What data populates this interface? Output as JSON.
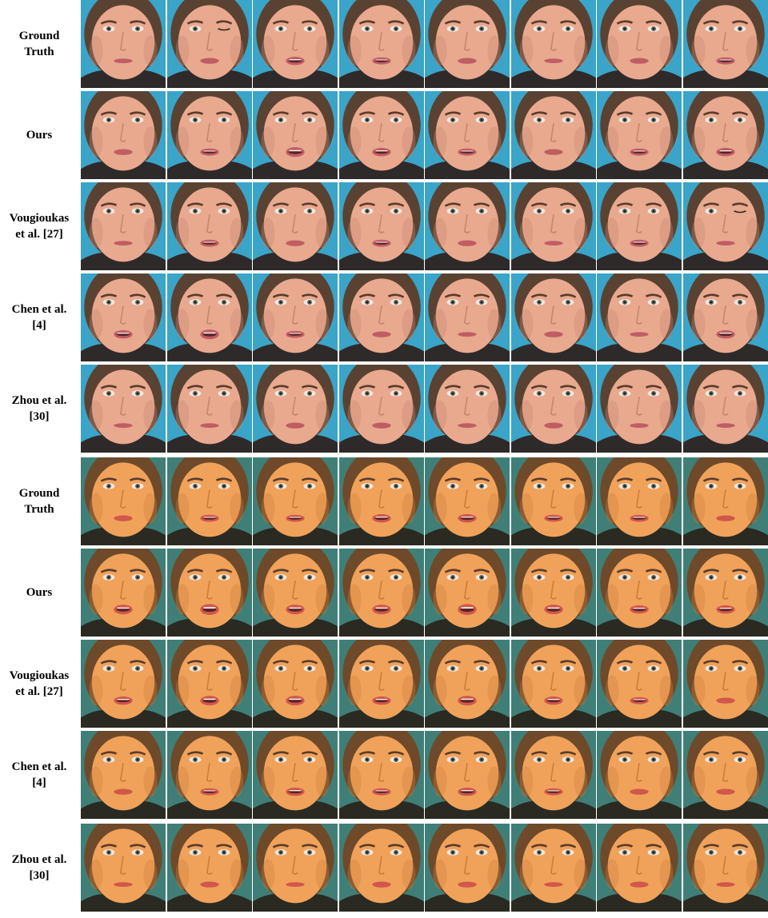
{
  "rows": [
    {
      "label": "Ground\nTruth",
      "subject": "a",
      "frames": 8
    },
    {
      "label": "Ours",
      "subject": "a",
      "frames": 8
    },
    {
      "label": "Vougioukas\net al. [27]",
      "subject": "a",
      "frames": 8
    },
    {
      "label": "Chen et al.\n[4]",
      "subject": "a",
      "frames": 8
    },
    {
      "label": "Zhou et al.\n[30]",
      "subject": "a",
      "frames": 8
    },
    {
      "label": "Ground\nTruth",
      "subject": "b",
      "frames": 8
    },
    {
      "label": "Ours",
      "subject": "b",
      "frames": 8
    },
    {
      "label": "Vougioukas\net al. [27]",
      "subject": "b",
      "frames": 8
    },
    {
      "label": "Chen et al.\n[4]",
      "subject": "b",
      "frames": 8
    },
    {
      "label": "Zhou et al.\n[30]",
      "subject": "b",
      "frames": 8
    }
  ],
  "subjects": {
    "a": {
      "background": "#3aa4c9",
      "skin": "#e8a98f",
      "skin_shadow": "#c98770",
      "hair": "#5a4232",
      "lips": "#c05d63",
      "shirt": "#2f2a2a"
    },
    "b": {
      "background": "#3f7f77",
      "skin": "#f0a25a",
      "skin_shadow": "#cf7e3c",
      "hair": "#6e4a2a",
      "lips": "#d0574a",
      "shirt": "#2a2a22"
    }
  }
}
